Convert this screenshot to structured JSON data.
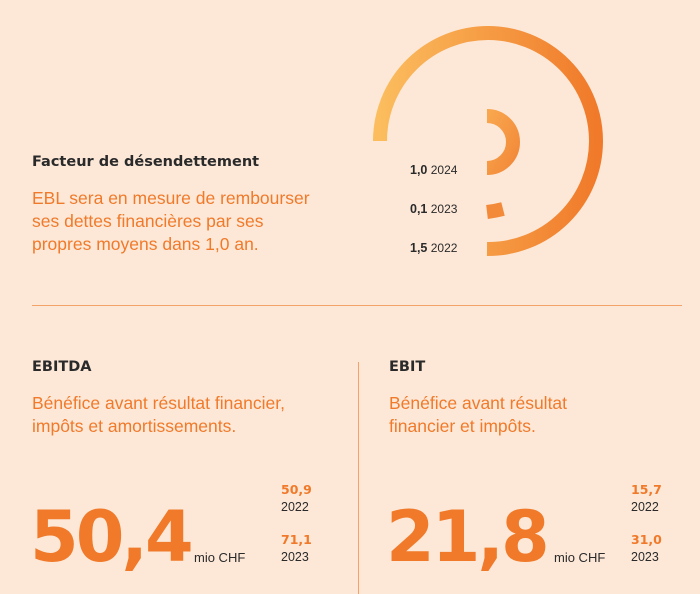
{
  "debt_factor": {
    "title": "Facteur de désendettement",
    "description": [
      "EBL sera en mesure de rembourser",
      "ses dettes financières par ses",
      "propres moyens dans 1,0 an."
    ],
    "rows": [
      {
        "value": "1,0",
        "year": "2024",
        "numeric": 1.0
      },
      {
        "value": "0,1",
        "year": "2023",
        "numeric": 0.1
      },
      {
        "value": "1,5",
        "year": "2022",
        "numeric": 1.5
      }
    ],
    "colors": {
      "arc_start": "#fbbd5e",
      "arc_end": "#f07a2a"
    }
  },
  "ebitda": {
    "title": "EBITDA",
    "description": [
      "Bénéfice avant résultat financier,",
      "impôts et amortissements."
    ],
    "value": "50,4",
    "unit": "mio CHF",
    "comparisons": [
      {
        "value": "50,9",
        "year": "2022"
      },
      {
        "value": "71,1",
        "year": "2023"
      }
    ]
  },
  "ebit": {
    "title": "EBIT",
    "description": [
      "Bénéfice avant résultat",
      "financier et impôts."
    ],
    "value": "21,8",
    "unit": "mio CHF",
    "comparisons": [
      {
        "value": "15,7",
        "year": "2022"
      },
      {
        "value": "31,0",
        "year": "2023"
      }
    ]
  },
  "colors": {
    "background": "#fde8d8",
    "accent": "#f07a2a",
    "text": "#2a2a2a",
    "divider": "#f3a36a"
  }
}
